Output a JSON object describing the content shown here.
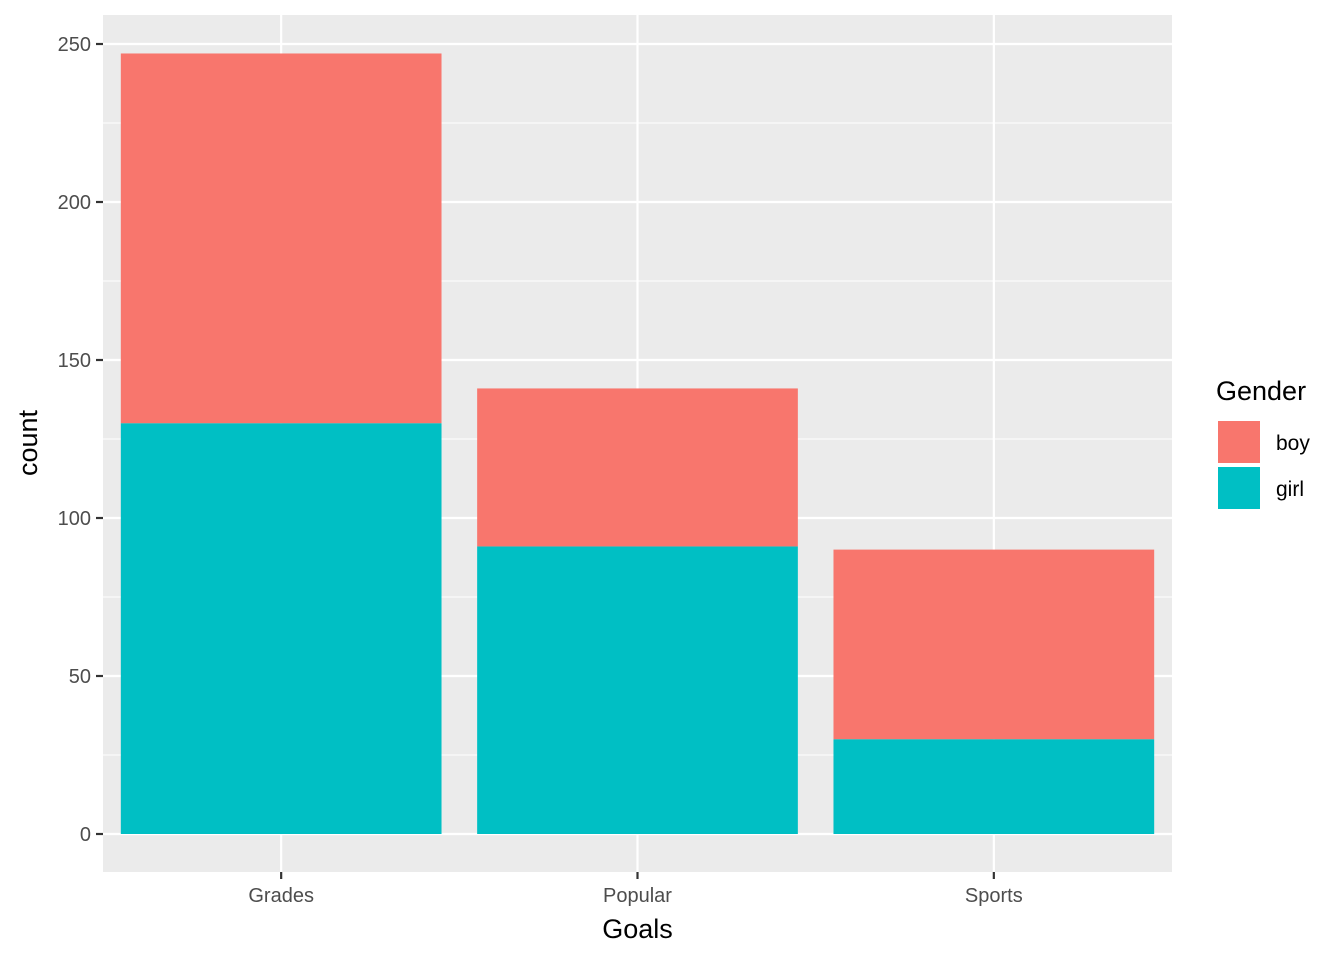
{
  "chart_data": {
    "type": "bar",
    "stacked": true,
    "categories": [
      "Grades",
      "Popular",
      "Sports"
    ],
    "series": [
      {
        "name": "girl",
        "values": [
          130,
          91,
          30
        ],
        "color": "#00BFC4"
      },
      {
        "name": "boy",
        "values": [
          117,
          50,
          60
        ],
        "color": "#F8766D"
      }
    ],
    "xlabel": "Goals",
    "ylabel": "count",
    "ylim": [
      0,
      260
    ],
    "yticks": [
      0,
      50,
      100,
      150,
      200,
      250
    ],
    "grid": true,
    "legend": {
      "title": "Gender",
      "position": "right",
      "items": [
        {
          "label": "boy",
          "color": "#F8766D"
        },
        {
          "label": "girl",
          "color": "#00BFC4"
        }
      ]
    },
    "panel_background": "#EBEBEB",
    "grid_color": "#FFFFFF"
  }
}
